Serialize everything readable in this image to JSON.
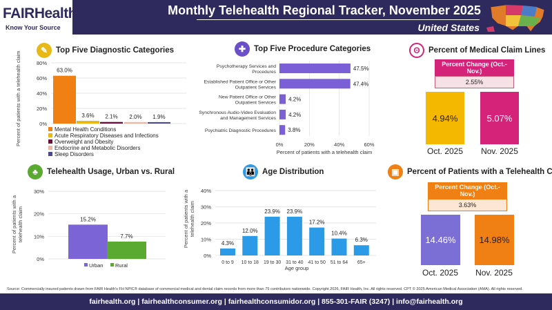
{
  "header": {
    "logo_text": "FAIRHealth",
    "logo_tagline": "Know Your Source",
    "title": "Monthly Telehealth Regional Tracker, November 2025",
    "region": "United States"
  },
  "colors": {
    "navy": "#2e2a5e",
    "orange": "#f07f14",
    "yellow": "#e8b817",
    "maroon": "#6b0f3a",
    "pink": "#eeb4a4",
    "indigo": "#4b4793",
    "purple": "#7b64d6",
    "green": "#5aaa32",
    "blue": "#2b9be8",
    "magenta": "#d6237a"
  },
  "chart_data": [
    {
      "id": "diagnostic",
      "type": "bar",
      "title": "Top Five Diagnostic Categories",
      "icon": "doctor-icon",
      "ylabel": "Percent of patients with a telehealth claim",
      "ylim": [
        0,
        80
      ],
      "yticks": [
        "0%",
        "20%",
        "40%",
        "60%",
        "80%"
      ],
      "grid": true,
      "legend": "bottom",
      "categories": [
        "Mental Health Conditions",
        "Acute Respiratory Diseases and Infections",
        "Overweight and Obesity",
        "Endocrine and Metabolic Disorders",
        "Sleep Disorders"
      ],
      "values": [
        63.0,
        3.6,
        2.1,
        2.0,
        1.9
      ],
      "labels": [
        "63.0%",
        "3.6%",
        "2.1%",
        "2.0%",
        "1.9%"
      ]
    },
    {
      "id": "procedure",
      "type": "bar",
      "orientation": "horizontal",
      "title": "Top Five Procedure Categories",
      "icon": "medical-kit-icon",
      "xlabel": "Percent of patients with a telehealth claim",
      "xlim": [
        0,
        60
      ],
      "xticks": [
        "0%",
        "20%",
        "40%",
        "60%"
      ],
      "grid": true,
      "categories": [
        "Psychotherapy Services and Procedures",
        "Established Patient Office or Other Outpatient Services",
        "New Patient Office or Other Outpatient Services",
        "Synchronous Audio-Video Evaluation and Management Services",
        "Psychiatric Diagnostic Procedures"
      ],
      "values": [
        47.5,
        47.4,
        4.2,
        4.2,
        3.8
      ],
      "labels": [
        "47.5%",
        "47.4%",
        "4.2%",
        "4.2%",
        "3.8%"
      ]
    },
    {
      "id": "medical_claim_lines",
      "type": "bar",
      "title": "Percent of Medical Claim Lines",
      "icon": "stethoscope-icon",
      "change_label": "Percent Change (Oct.-Nov.)",
      "change_value": "2.55%",
      "categories": [
        "Oct. 2025",
        "Nov. 2025"
      ],
      "values": [
        4.94,
        5.07
      ],
      "labels": [
        "4.94%",
        "5.07%"
      ]
    },
    {
      "id": "urban_rural",
      "type": "bar",
      "title": "Telehealth Usage, Urban vs. Rural",
      "icon": "tree-icon",
      "ylabel": "Percent of patients with a telehealth claim",
      "ylim": [
        0,
        30
      ],
      "yticks": [
        "0%",
        "10%",
        "20%",
        "30%"
      ],
      "grid": true,
      "legend": "bottom",
      "categories": [
        "Urban",
        "Rural"
      ],
      "values": [
        15.2,
        7.7
      ],
      "labels": [
        "15.2%",
        "7.7%"
      ]
    },
    {
      "id": "age",
      "type": "bar",
      "title": "Age Distribution",
      "icon": "people-icon",
      "ylabel": "Percent of patients with a telehealth claim",
      "xlabel": "Age group",
      "ylim": [
        0,
        40
      ],
      "yticks": [
        "0%",
        "10%",
        "20%",
        "30%",
        "40%"
      ],
      "grid": true,
      "categories": [
        "0 to 9",
        "10 to 18",
        "19 to 30",
        "31 to 40",
        "41 to 50",
        "51 to 64",
        "65+"
      ],
      "values": [
        4.3,
        12.0,
        23.9,
        23.9,
        17.2,
        10.4,
        6.3
      ],
      "labels": [
        "4.3%",
        "12.0%",
        "23.9%",
        "23.9%",
        "17.2%",
        "10.4%",
        "6.3%"
      ]
    },
    {
      "id": "patients_claim",
      "type": "bar",
      "title": "Percent of Patients with a Telehealth Claim",
      "icon": "computer-doctor-icon",
      "change_label": "Percent Change (Oct.-Nov.)",
      "change_value": "3.63%",
      "categories": [
        "Oct. 2025",
        "Nov. 2025"
      ],
      "values": [
        14.46,
        14.98
      ],
      "labels": [
        "14.46%",
        "14.98%"
      ]
    }
  ],
  "source": "Source: Commercially insured patients drawn from FAIR Health's FH NPIC® database of commercial medical and dental claim records from more than 75 contributors nationwide. Copyright 2026, FAIR Health, Inc. All rights reserved. CPT © 2025 American Medical Association (AMA). All rights reserved.",
  "footer": "fairhealth.org  |  fairhealthconsumer.org  |  fairhealthconsumidor.org  |  855-301-FAIR (3247)  |  info@fairhealth.org"
}
